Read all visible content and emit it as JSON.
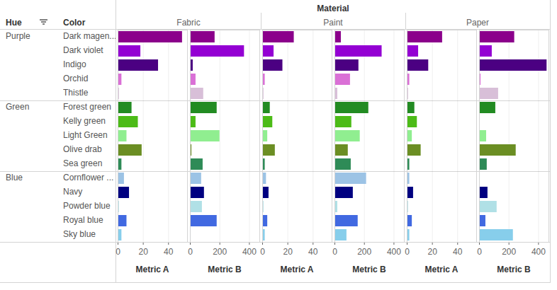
{
  "chart_data": {
    "type": "bar",
    "orientation": "horizontal",
    "grid": true,
    "tick_labels": "x",
    "column_title": "Material",
    "row_titles": [
      "Hue",
      "Color"
    ],
    "categories": [
      "Dark magen...",
      "Dark violet",
      "Indigo",
      "Orchid",
      "Thistle",
      "Forest green",
      "Kelly green",
      "Light Green",
      "Olive drab",
      "Sea green",
      "Cornflower ...",
      "Navy",
      "Powder blue",
      "Royal blue",
      "Sky blue"
    ],
    "groups": [
      "Purple",
      "Purple",
      "Purple",
      "Purple",
      "Purple",
      "Green",
      "Green",
      "Green",
      "Green",
      "Green",
      "Blue",
      "Blue",
      "Blue",
      "Blue",
      "Blue"
    ],
    "colors": [
      "#8b008b",
      "#9400d3",
      "#4b0082",
      "#da70d6",
      "#d8bfd8",
      "#228b22",
      "#4cbb17",
      "#90ee90",
      "#6b8e23",
      "#2e8b57",
      "#9cc3e5",
      "#000080",
      "#b0e0e6",
      "#4169e1",
      "#87ceeb"
    ],
    "panels": [
      {
        "material": "Fabric",
        "metric": "Metric A",
        "xlim": [
          0,
          55
        ],
        "xticks": [
          0,
          20,
          40
        ],
        "values": [
          51,
          18,
          32,
          3,
          1,
          11,
          16,
          7,
          19,
          3,
          5,
          9,
          1,
          7,
          3
        ]
      },
      {
        "material": "Fabric",
        "metric": "Metric B",
        "xlim": [
          0,
          470
        ],
        "xticks": [
          0,
          200,
          400
        ],
        "values": [
          167,
          366,
          19,
          38,
          90,
          181,
          38,
          200,
          10,
          86,
          76,
          95,
          81,
          181,
          5
        ]
      },
      {
        "material": "Paint",
        "metric": "Metric A",
        "xlim": [
          0,
          55
        ],
        "xticks": [
          0,
          20,
          40
        ],
        "values": [
          25,
          9,
          16,
          2,
          1,
          6,
          8,
          4,
          10,
          2,
          3,
          5,
          1,
          4,
          2
        ]
      },
      {
        "material": "Paint",
        "metric": "Metric B",
        "xlim": [
          0,
          470
        ],
        "xticks": [
          0,
          200,
          400
        ],
        "values": [
          43,
          319,
          162,
          105,
          19,
          229,
          114,
          171,
          90,
          110,
          214,
          124,
          19,
          157,
          81
        ]
      },
      {
        "material": "Paper",
        "metric": "Metric A",
        "xlim": [
          0,
          55
        ],
        "xticks": [
          0,
          20,
          40
        ],
        "values": [
          28,
          9,
          17,
          2,
          1,
          6,
          8,
          4,
          11,
          2,
          2,
          5,
          1,
          4,
          2
        ]
      },
      {
        "material": "Paper",
        "metric": "Metric B",
        "xlim": [
          0,
          470
        ],
        "xticks": [
          0,
          200,
          400
        ],
        "values": [
          238,
          86,
          457,
          10,
          129,
          110,
          2,
          48,
          248,
          52,
          5,
          57,
          119,
          43,
          229
        ]
      }
    ]
  }
}
